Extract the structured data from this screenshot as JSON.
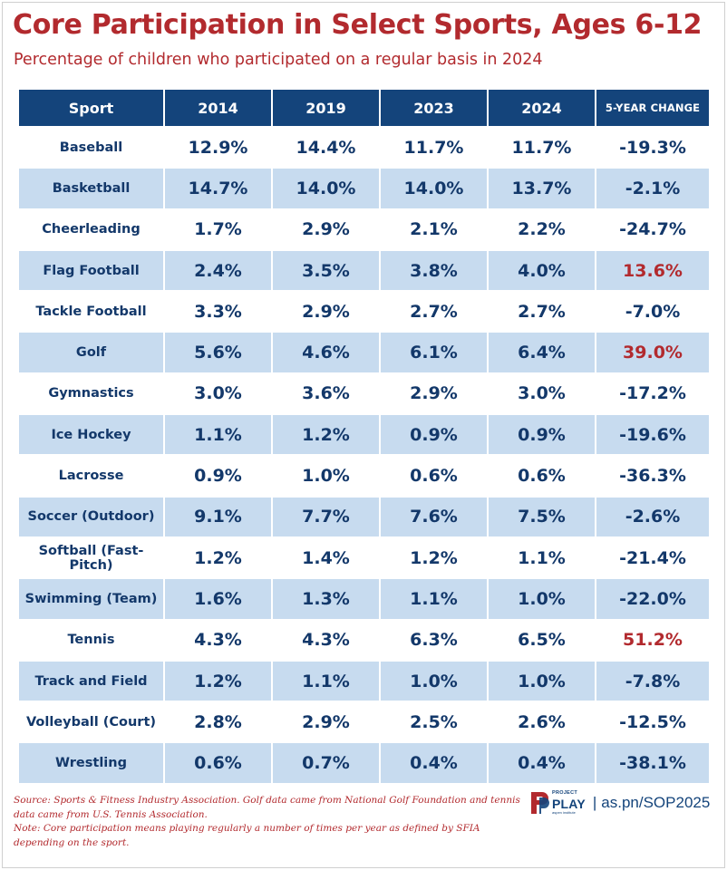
{
  "title": "Core Participation in Select Sports, Ages 6-12",
  "subtitle": "Percentage of children who participated on a regular basis in 2024",
  "colors": {
    "title": "#b22a2e",
    "header_bg": "#14447b",
    "row_alt_bg": "#c7dbef",
    "value_text": "#13386a",
    "positive_change": "#b22a2e"
  },
  "chart_data": {
    "type": "table",
    "columns": [
      "Sport",
      "2014",
      "2019",
      "2023",
      "2024",
      "5-YEAR CHANGE"
    ],
    "rows": [
      {
        "sport": "Baseball",
        "values": [
          "12.9%",
          "14.4%",
          "11.7%",
          "11.7%"
        ],
        "change": "-19.3%",
        "positive": false
      },
      {
        "sport": "Basketball",
        "values": [
          "14.7%",
          "14.0%",
          "14.0%",
          "13.7%"
        ],
        "change": "-2.1%",
        "positive": false
      },
      {
        "sport": "Cheerleading",
        "values": [
          "1.7%",
          "2.9%",
          "2.1%",
          "2.2%"
        ],
        "change": "-24.7%",
        "positive": false
      },
      {
        "sport": "Flag Football",
        "values": [
          "2.4%",
          "3.5%",
          "3.8%",
          "4.0%"
        ],
        "change": "13.6%",
        "positive": true
      },
      {
        "sport": "Tackle Football",
        "values": [
          "3.3%",
          "2.9%",
          "2.7%",
          "2.7%"
        ],
        "change": "-7.0%",
        "positive": false
      },
      {
        "sport": "Golf",
        "values": [
          "5.6%",
          "4.6%",
          "6.1%",
          "6.4%"
        ],
        "change": "39.0%",
        "positive": true
      },
      {
        "sport": "Gymnastics",
        "values": [
          "3.0%",
          "3.6%",
          "2.9%",
          "3.0%"
        ],
        "change": "-17.2%",
        "positive": false
      },
      {
        "sport": "Ice Hockey",
        "values": [
          "1.1%",
          "1.2%",
          "0.9%",
          "0.9%"
        ],
        "change": "-19.6%",
        "positive": false
      },
      {
        "sport": "Lacrosse",
        "values": [
          "0.9%",
          "1.0%",
          "0.6%",
          "0.6%"
        ],
        "change": "-36.3%",
        "positive": false
      },
      {
        "sport": "Soccer (Outdoor)",
        "values": [
          "9.1%",
          "7.7%",
          "7.6%",
          "7.5%"
        ],
        "change": "-2.6%",
        "positive": false
      },
      {
        "sport": "Softball (Fast-Pitch)",
        "values": [
          "1.2%",
          "1.4%",
          "1.2%",
          "1.1%"
        ],
        "change": "-21.4%",
        "positive": false
      },
      {
        "sport": "Swimming (Team)",
        "values": [
          "1.6%",
          "1.3%",
          "1.1%",
          "1.0%"
        ],
        "change": "-22.0%",
        "positive": false
      },
      {
        "sport": "Tennis",
        "values": [
          "4.3%",
          "4.3%",
          "6.3%",
          "6.5%"
        ],
        "change": "51.2%",
        "positive": true
      },
      {
        "sport": "Track and Field",
        "values": [
          "1.2%",
          "1.1%",
          "1.0%",
          "1.0%"
        ],
        "change": "-7.8%",
        "positive": false
      },
      {
        "sport": "Volleyball (Court)",
        "values": [
          "2.8%",
          "2.9%",
          "2.5%",
          "2.6%"
        ],
        "change": "-12.5%",
        "positive": false
      },
      {
        "sport": "Wrestling",
        "values": [
          "0.6%",
          "0.7%",
          "0.4%",
          "0.4%"
        ],
        "change": "-38.1%",
        "positive": false
      }
    ]
  },
  "footnote": {
    "source": "Source: Sports & Fitness Industry Association. Golf data came from National Golf Foundation and tennis data came from U.S. Tennis Association.",
    "note": "Note: Core participation means playing regularly a number of times per year as defined by SFIA depending on the sport."
  },
  "brand": {
    "logo_small": "PROJECT",
    "logo_big": "PLAY",
    "logo_tag": "aspen institute",
    "separator": "|",
    "url": "as.pn/SOP2025"
  }
}
